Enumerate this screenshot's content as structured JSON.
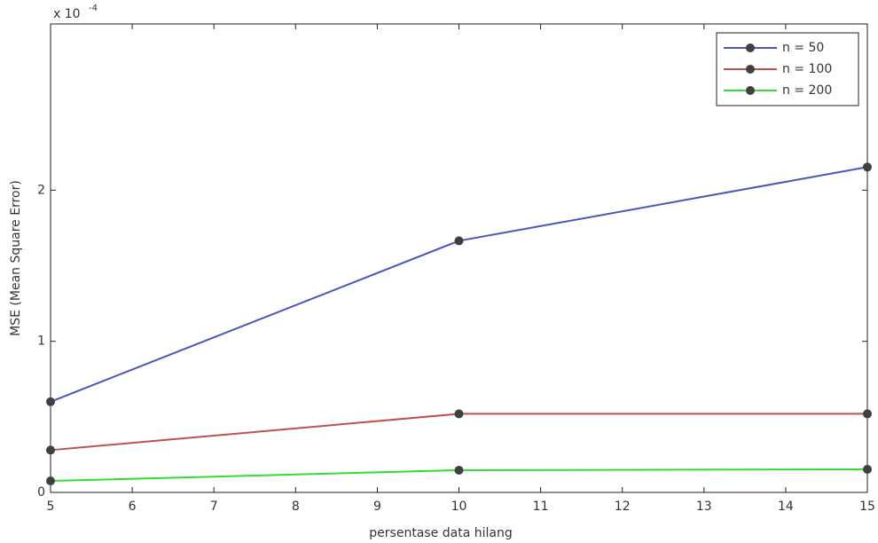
{
  "chart_data": {
    "type": "line",
    "x_label": "persentase data hilang",
    "y_label": "MSE (Mean Square Error)",
    "y_multiplier": {
      "base": "x 10",
      "exponent": "-4"
    },
    "x": [
      5,
      10,
      15
    ],
    "series": [
      {
        "name": "n = 50",
        "color": "#4a55c0",
        "values": [
          0.6,
          1.665,
          2.153
        ]
      },
      {
        "name": "n = 100",
        "color": "#c0504d",
        "values": [
          0.28,
          0.52,
          0.52
        ]
      },
      {
        "name": "n = 200",
        "color": "#33dd33",
        "values": [
          0.076,
          0.147,
          0.153
        ]
      }
    ],
    "marker_color": "#404040",
    "xlim": [
      5,
      15
    ],
    "xticks": [
      5,
      6,
      7,
      8,
      9,
      10,
      11,
      12,
      13,
      14,
      15
    ],
    "ylim": [
      0,
      3.1
    ],
    "yticks": [
      0,
      1,
      2
    ],
    "grid": false,
    "legend": "top-right"
  }
}
